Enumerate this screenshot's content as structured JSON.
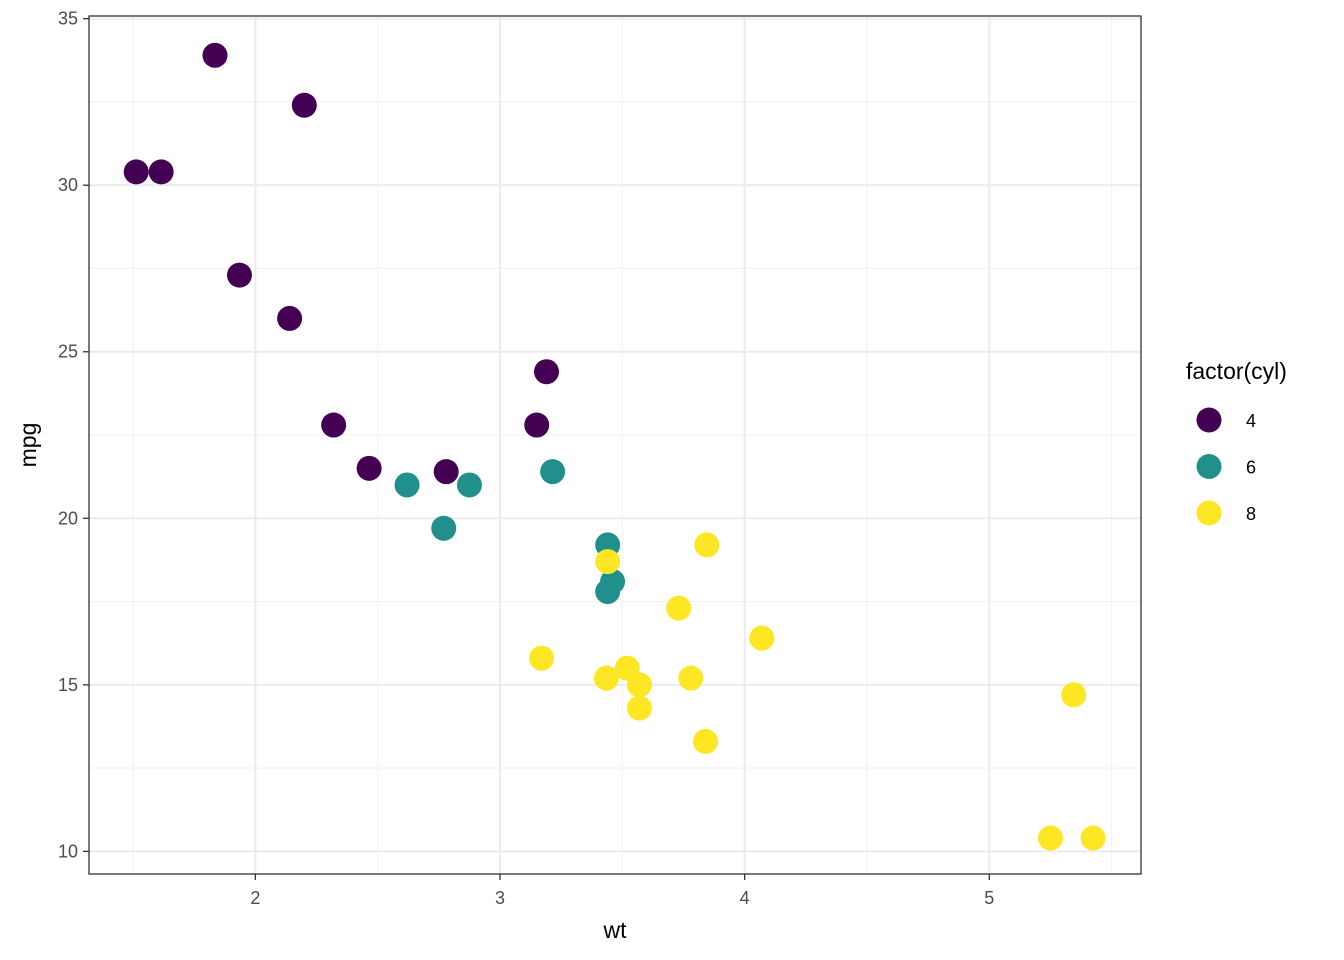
{
  "chart_data": {
    "type": "scatter",
    "xlabel": "wt",
    "ylabel": "mpg",
    "xlim": [
      1.32,
      5.62
    ],
    "ylim": [
      9.32,
      35.08
    ],
    "x_ticks": [
      2,
      3,
      4,
      5
    ],
    "x_tick_labels": [
      "2",
      "3",
      "4",
      "5"
    ],
    "y_ticks": [
      10,
      15,
      20,
      25,
      30,
      35
    ],
    "y_tick_labels": [
      "10",
      "15",
      "20",
      "25",
      "30",
      "35"
    ],
    "grid": true,
    "legend": {
      "title": "factor(cyl)",
      "placement": "right",
      "entries": [
        "4",
        "6",
        "8"
      ]
    },
    "colors": {
      "4": "#440154",
      "6": "#21908C",
      "8": "#FDE725"
    },
    "series": [
      {
        "name": "4",
        "points": [
          {
            "x": 1.513,
            "y": 30.4
          },
          {
            "x": 1.615,
            "y": 30.4
          },
          {
            "x": 1.835,
            "y": 33.9
          },
          {
            "x": 1.935,
            "y": 27.3
          },
          {
            "x": 2.14,
            "y": 26.0
          },
          {
            "x": 2.2,
            "y": 32.4
          },
          {
            "x": 2.32,
            "y": 22.8
          },
          {
            "x": 2.465,
            "y": 21.5
          },
          {
            "x": 2.78,
            "y": 21.4
          },
          {
            "x": 3.15,
            "y": 22.8
          },
          {
            "x": 3.19,
            "y": 24.4
          }
        ]
      },
      {
        "name": "6",
        "points": [
          {
            "x": 2.62,
            "y": 21.0
          },
          {
            "x": 2.77,
            "y": 19.7
          },
          {
            "x": 2.875,
            "y": 21.0
          },
          {
            "x": 3.215,
            "y": 21.4
          },
          {
            "x": 3.44,
            "y": 19.2
          },
          {
            "x": 3.44,
            "y": 17.8
          },
          {
            "x": 3.46,
            "y": 18.1
          }
        ]
      },
      {
        "name": "8",
        "points": [
          {
            "x": 3.17,
            "y": 15.8
          },
          {
            "x": 3.435,
            "y": 15.2
          },
          {
            "x": 3.44,
            "y": 18.7
          },
          {
            "x": 3.52,
            "y": 15.5
          },
          {
            "x": 3.57,
            "y": 14.3
          },
          {
            "x": 3.57,
            "y": 15.0
          },
          {
            "x": 3.73,
            "y": 17.3
          },
          {
            "x": 3.78,
            "y": 15.2
          },
          {
            "x": 3.84,
            "y": 13.3
          },
          {
            "x": 3.845,
            "y": 19.2
          },
          {
            "x": 4.07,
            "y": 16.4
          },
          {
            "x": 5.25,
            "y": 10.4
          },
          {
            "x": 5.345,
            "y": 14.7
          },
          {
            "x": 5.424,
            "y": 10.4
          }
        ]
      }
    ]
  }
}
